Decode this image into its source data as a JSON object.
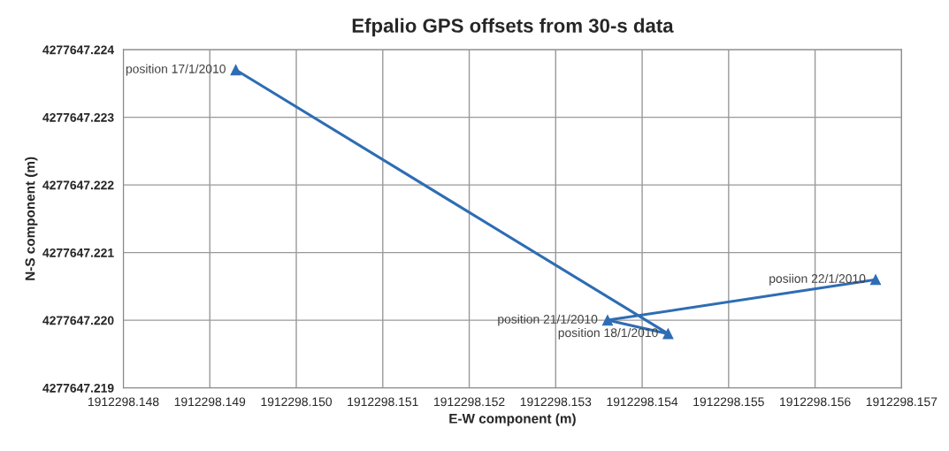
{
  "chart_data": {
    "type": "line",
    "title": "Efpalio GPS offsets from 30-s data",
    "xlabel": "E-W component (m)",
    "ylabel": "N-S component (m)",
    "series": [
      {
        "color": "#2e6db4",
        "x": [
          1912298.1493,
          1912298.1543,
          1912298.1536,
          1912298.1567
        ],
        "values": [
          4277647.2237,
          4277647.2198,
          4277647.22,
          4277647.2206
        ]
      }
    ],
    "annotations": [
      {
        "text": "position 17/1/2010",
        "x": 1912298.1493,
        "y": 4277647.2237
      },
      {
        "text": "position 18/1/2010",
        "x": 1912298.1543,
        "y": 4277647.2198
      },
      {
        "text": "position 21/1/2010",
        "x": 1912298.1536,
        "y": 4277647.22
      },
      {
        "text": "posiion 22/1/2010",
        "x": 1912298.1567,
        "y": 4277647.2206
      }
    ],
    "xlim": [
      1912298.148,
      1912298.157
    ],
    "xticks": [
      1912298.148,
      1912298.149,
      {
        "value": 1912298.15,
        "label": "1912298.150"
      },
      1912298.151,
      1912298.152,
      1912298.153,
      1912298.154,
      1912298.155,
      1912298.156,
      1912298.157
    ],
    "ylim": [
      4277647.219,
      4277647.224
    ],
    "yticks": [
      4277647.219,
      {
        "value": 4277647.22,
        "label": "4277647.220"
      },
      4277647.221,
      4277647.222,
      4277647.223,
      4277647.224
    ],
    "grid": true,
    "marker": "triangle",
    "line_style": "solid",
    "legend": false
  }
}
